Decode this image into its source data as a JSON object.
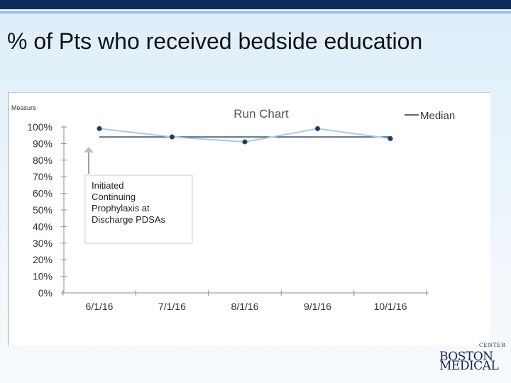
{
  "slide": {
    "title": "% of Pts who received bedside education"
  },
  "logo": {
    "line1": "BOSTON",
    "line2": "MEDICAL",
    "arc": "CENTER"
  },
  "colors": {
    "top_bar": "#0b2a5c",
    "top_rule": "#8fb8e3",
    "series_line": "#a9cbe6",
    "series_marker": "#1f3b73",
    "median_line": "#1a3b52"
  },
  "chart_data": {
    "type": "line",
    "title": "Run Chart",
    "ylabel": "Measure",
    "xlabel": "",
    "categories": [
      "6/1/16",
      "7/1/16",
      "8/1/16",
      "9/1/16",
      "10/1/16"
    ],
    "series": [
      {
        "values": [
          99,
          94,
          91,
          99,
          93
        ]
      }
    ],
    "median": {
      "name": "Median",
      "value": 94
    },
    "yticks": [
      "100%",
      "90%",
      "80%",
      "70%",
      "60%",
      "50%",
      "40%",
      "30%",
      "20%",
      "10%",
      "0%"
    ],
    "ylim": [
      0,
      100
    ],
    "grid": false,
    "legend": "top-right",
    "annotation": {
      "lines": [
        "Initiated",
        "Continuing",
        "Prophylaxis at",
        "Discharge PDSAs"
      ]
    }
  }
}
